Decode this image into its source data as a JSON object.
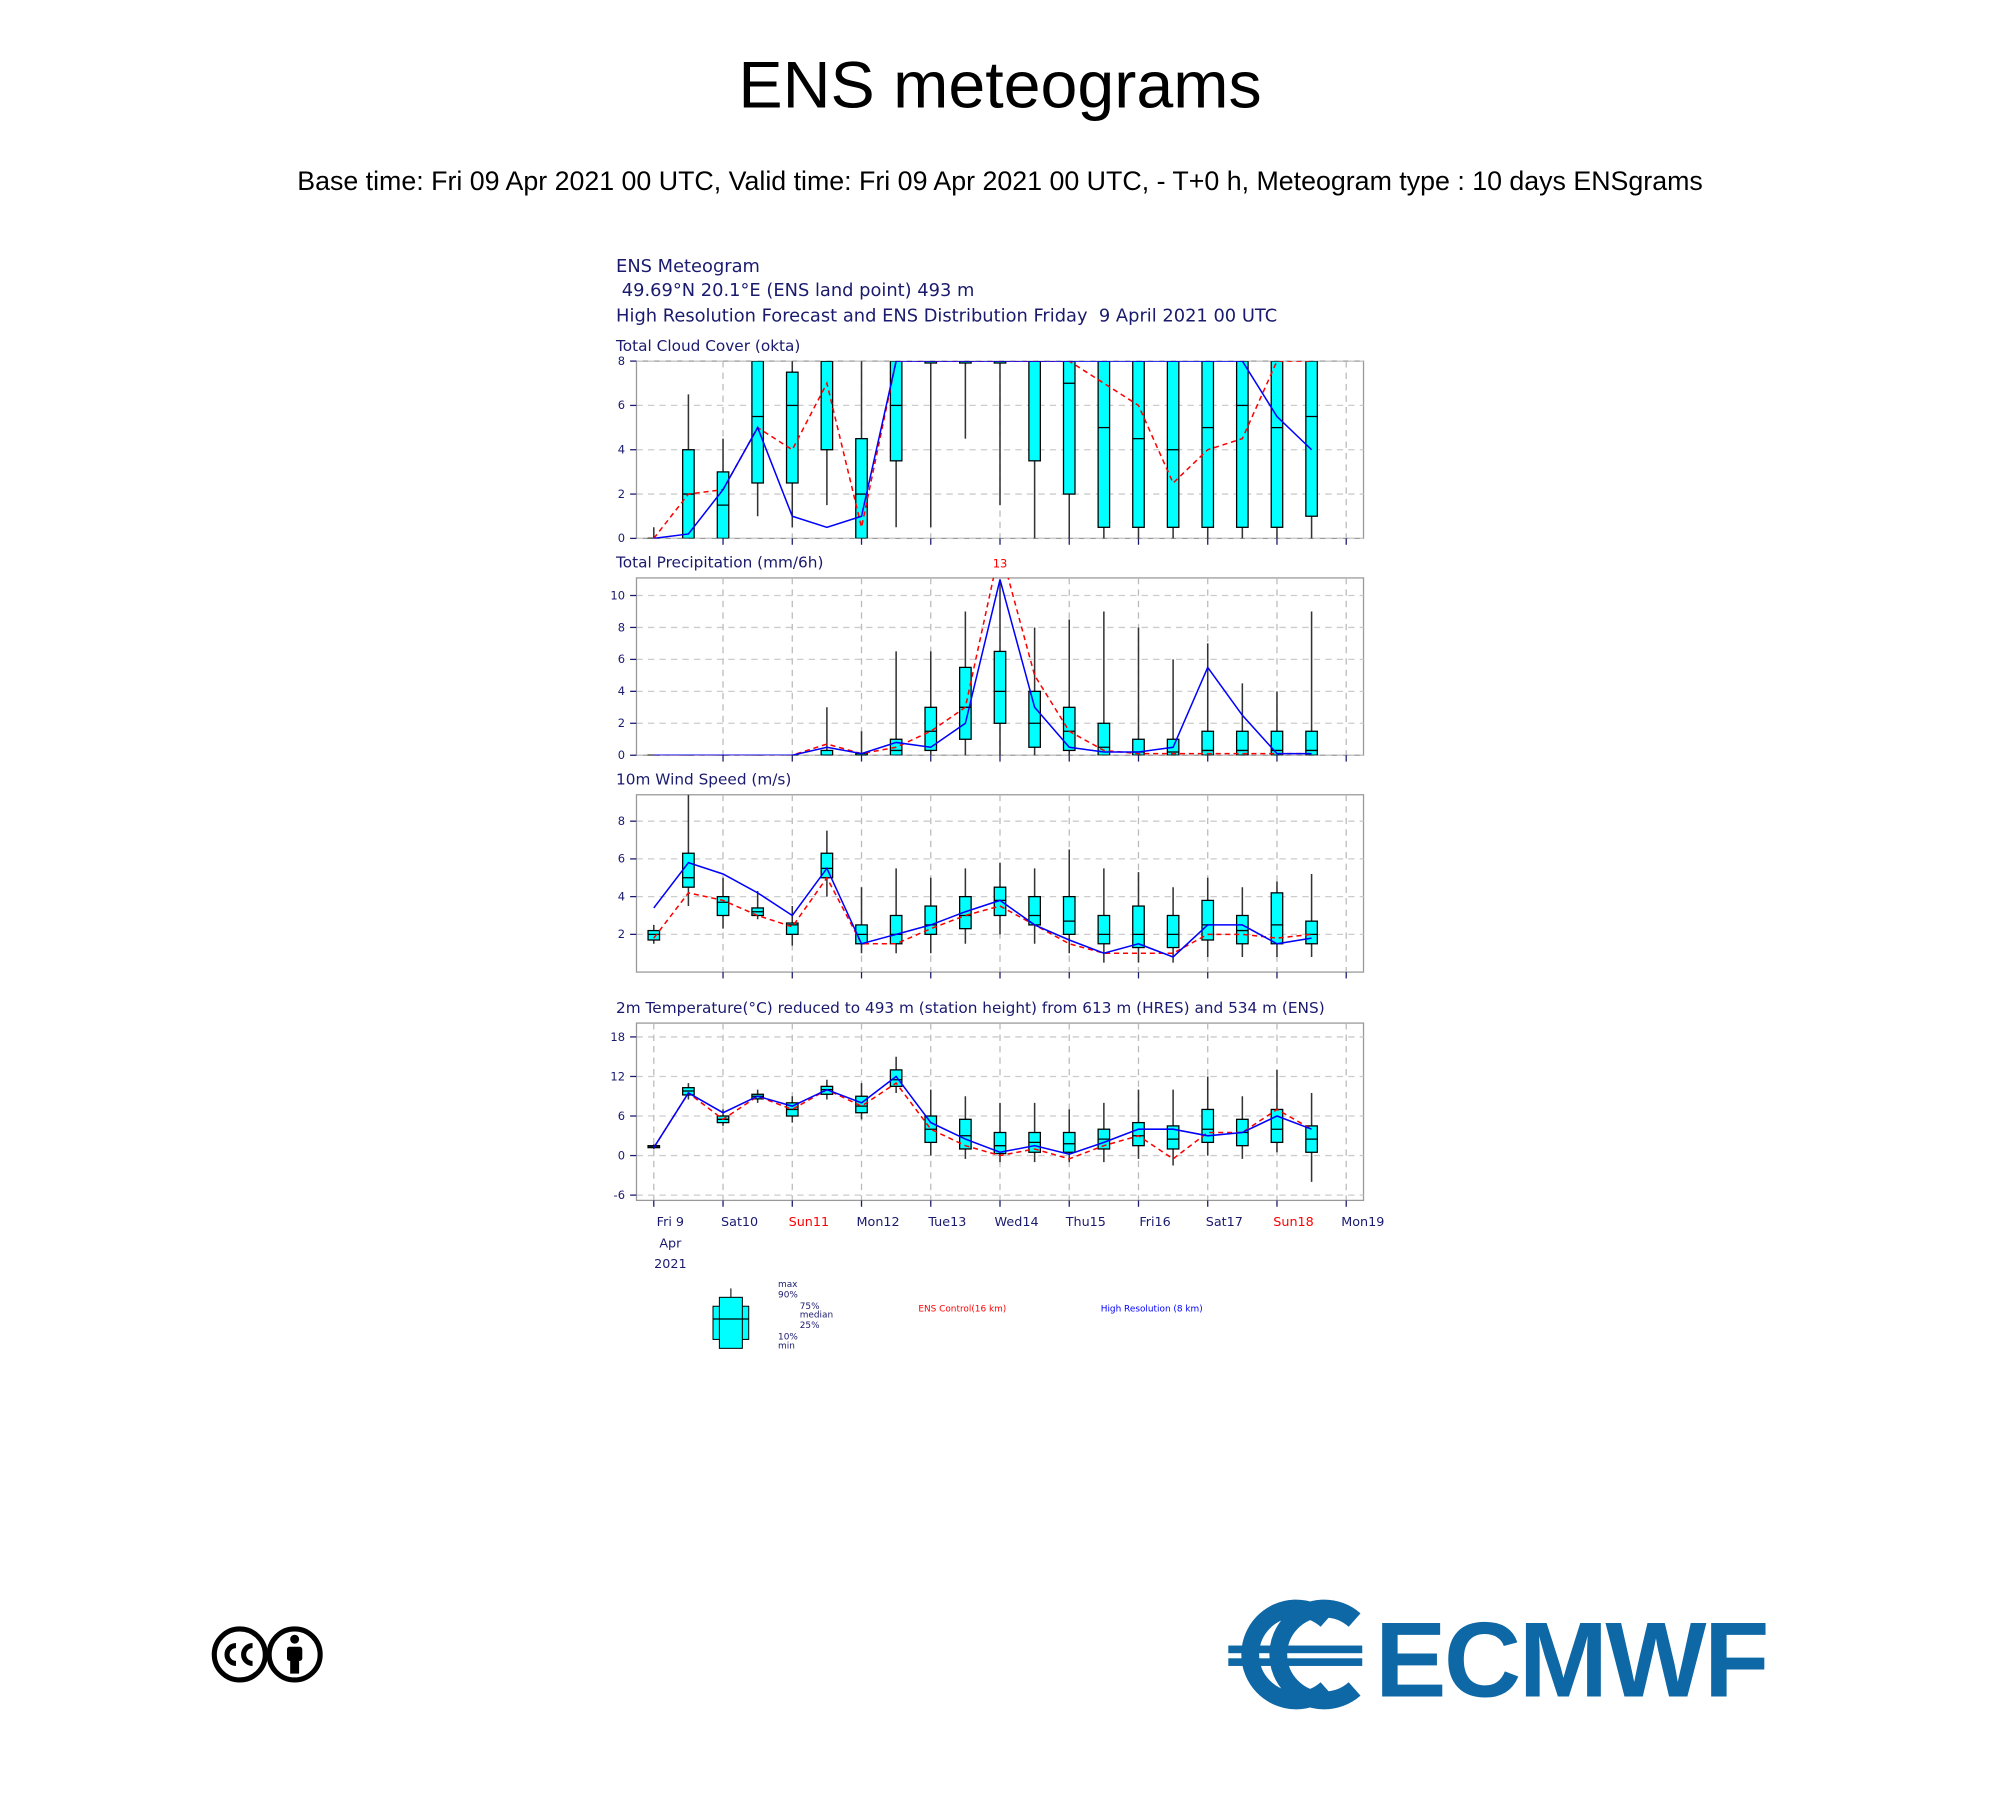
{
  "page": {
    "title": "ENS meteograms",
    "subtitle": "Base time: Fri 09 Apr 2021 00 UTC, Valid time: Fri 09 Apr 2021 00 UTC, - T+0 h, Meteogram type : 10 days ENSgrams",
    "header": [
      "ENS Meteogram",
      " 49.69°N 20.1°E (ENS land point) 493 m",
      "High Resolution Forecast and ENS Distribution Friday  9 April 2021 00 UTC"
    ],
    "legend": {
      "stats": [
        "max",
        "90%",
        "75%",
        "median",
        "25%",
        "10%",
        "min"
      ],
      "box_color": "#00ffff",
      "control": "ENS Control(16 km)",
      "control_color": "#ff0000",
      "hres": "High Resolution (8 km)",
      "hres_color": "#0000ff"
    },
    "logo_text": "ECMWF",
    "logo_color": "#0f68a6"
  },
  "chart_data": [
    {
      "type": "box",
      "title": "Total Cloud Cover (okta)",
      "grid": true,
      "x": [
        0,
        12,
        24,
        36,
        48,
        60,
        72,
        84,
        96,
        108,
        120,
        132,
        144,
        156,
        168,
        180,
        192,
        204,
        216,
        228
      ],
      "xlim": [
        -6,
        246
      ],
      "xticks": [
        24,
        48,
        72,
        96,
        120,
        144,
        168,
        192,
        216,
        240
      ],
      "ylim": [
        0,
        8
      ],
      "yticks": [
        0,
        2,
        4,
        6,
        8
      ],
      "boxes": {
        "color": "#00ffff",
        "min": [
          0,
          0,
          0,
          1,
          0.5,
          1.5,
          0,
          0.5,
          0.5,
          4.5,
          1.5,
          0,
          0,
          0,
          0,
          0,
          0,
          0,
          0,
          0
        ],
        "q1": [
          0,
          0,
          0,
          2.5,
          2.5,
          4,
          0,
          3.5,
          8,
          8,
          8,
          3.5,
          2,
          0.5,
          0.5,
          0.5,
          0.5,
          0.5,
          0.5,
          1
        ],
        "median": [
          0,
          2,
          1.5,
          5.5,
          6,
          8,
          2,
          6,
          8,
          8,
          8,
          8,
          7,
          5,
          4.5,
          4,
          5,
          6,
          5,
          5.5
        ],
        "q3": [
          0,
          4,
          3,
          8,
          7.5,
          8,
          4.5,
          8,
          8,
          8,
          8,
          8,
          8,
          8,
          8,
          8,
          8,
          8,
          8,
          8
        ],
        "max": [
          0.5,
          6.5,
          4.5,
          8,
          8,
          8,
          8,
          8,
          8,
          8,
          8,
          8,
          8,
          8,
          8,
          8,
          8,
          8,
          8,
          8
        ]
      },
      "series": [
        {
          "color": "#ff0000",
          "dashed": true,
          "values": [
            0,
            2,
            2.2,
            5,
            4,
            7,
            0.5,
            8,
            8,
            8,
            8,
            8,
            8,
            7,
            6,
            2.5,
            4,
            4.5,
            8,
            8
          ]
        },
        {
          "color": "#0000ff",
          "dashed": false,
          "values": [
            0,
            0.2,
            2.2,
            5,
            1,
            0.5,
            1,
            8,
            8,
            8,
            8,
            8,
            8,
            8,
            8,
            8,
            8,
            8,
            5.5,
            4
          ]
        }
      ]
    },
    {
      "type": "box",
      "title": "Total Precipitation (mm/6h)",
      "grid": true,
      "x": [
        0,
        12,
        24,
        36,
        48,
        60,
        72,
        84,
        96,
        108,
        120,
        132,
        144,
        156,
        168,
        180,
        192,
        204,
        216,
        228
      ],
      "xlim": [
        -6,
        246
      ],
      "xticks": [
        24,
        48,
        72,
        96,
        120,
        144,
        168,
        192,
        216,
        240
      ],
      "ylim": [
        0,
        11.1
      ],
      "yticks": [
        0,
        2,
        4,
        6,
        8,
        10
      ],
      "boxes": {
        "color": "#00ffff",
        "min": [
          0,
          0,
          0,
          0,
          0,
          0,
          0,
          0,
          0,
          0,
          0,
          0,
          0,
          0,
          0,
          0,
          0,
          0,
          0,
          0
        ],
        "q1": [
          0,
          0,
          0,
          0,
          0,
          0,
          0,
          0,
          0.3,
          1,
          2,
          0.5,
          0.3,
          0,
          0,
          0,
          0,
          0,
          0,
          0
        ],
        "median": [
          0,
          0,
          0,
          0,
          0,
          0,
          0,
          0.3,
          1.5,
          3,
          4,
          2,
          1.5,
          0.5,
          0.2,
          0.2,
          0.3,
          0.3,
          0.3,
          0.3
        ],
        "q3": [
          0,
          0,
          0,
          0,
          0,
          0.3,
          0.1,
          1,
          3,
          5.5,
          6.5,
          4,
          3,
          2,
          1,
          1,
          1.5,
          1.5,
          1.5,
          1.5
        ],
        "max": [
          0,
          0,
          0,
          0,
          0,
          3,
          1.5,
          6.5,
          6.5,
          9,
          11,
          8,
          8.5,
          9,
          8,
          6,
          7,
          4.5,
          4,
          9
        ]
      },
      "series": [
        {
          "color": "#ff0000",
          "dashed": true,
          "values": [
            0,
            0,
            0,
            0,
            0,
            0.7,
            0.1,
            0.5,
            1.5,
            3,
            13,
            5,
            1.5,
            0.3,
            0.1,
            0.1,
            0.1,
            0.1,
            0.1,
            0.1
          ],
          "value_labels": [
            null,
            null,
            null,
            null,
            null,
            null,
            null,
            null,
            null,
            null,
            "13",
            null,
            null,
            null,
            null,
            null,
            null,
            null,
            null,
            null
          ]
        },
        {
          "color": "#0000ff",
          "dashed": false,
          "values": [
            0,
            0,
            0,
            0,
            0,
            0.5,
            0.1,
            0.8,
            0.5,
            2,
            11,
            3,
            0.5,
            0.2,
            0.2,
            0.5,
            5.5,
            2.5,
            0.1,
            0.1
          ]
        }
      ]
    },
    {
      "type": "box",
      "title": "10m Wind Speed (m/s)",
      "grid": true,
      "x": [
        0,
        12,
        24,
        36,
        48,
        60,
        72,
        84,
        96,
        108,
        120,
        132,
        144,
        156,
        168,
        180,
        192,
        204,
        216,
        228
      ],
      "xlim": [
        -6,
        246
      ],
      "xticks": [
        24,
        48,
        72,
        96,
        120,
        144,
        168,
        192,
        216,
        240
      ],
      "ylim": [
        0,
        9.4
      ],
      "yticks": [
        2,
        4,
        6,
        8
      ],
      "boxes": {
        "color": "#00ffff",
        "min": [
          1.5,
          3.5,
          2.3,
          2.8,
          1.4,
          4,
          1,
          1,
          1,
          1.5,
          2,
          1.5,
          1,
          0.5,
          0.5,
          0.5,
          0.8,
          0.8,
          0.8,
          0.8
        ],
        "q1": [
          1.7,
          4.5,
          3,
          3,
          2,
          5,
          1.5,
          1.5,
          2,
          2.3,
          3,
          2.5,
          2,
          1.5,
          1.3,
          1.3,
          1.7,
          1.5,
          1.5,
          1.5
        ],
        "median": [
          2,
          5,
          3.7,
          3.2,
          2.5,
          5.5,
          2,
          2,
          2.5,
          3,
          3.8,
          3,
          2.7,
          2,
          2,
          2,
          2.5,
          2.2,
          2.5,
          2
        ],
        "q3": [
          2.2,
          6.3,
          4,
          3.4,
          2.6,
          6.3,
          2.5,
          3,
          3.5,
          4,
          4.5,
          4,
          4,
          3,
          3.5,
          3,
          3.8,
          3,
          4.2,
          2.7
        ],
        "max": [
          2.5,
          9.4,
          5,
          4.3,
          3.5,
          7.5,
          4.5,
          5.5,
          5,
          5.5,
          5.8,
          5.5,
          6.5,
          5.5,
          5.3,
          4.5,
          5,
          4.5,
          4.8,
          5.2
        ]
      },
      "series": [
        {
          "color": "#ff0000",
          "dashed": true,
          "values": [
            1.8,
            4.2,
            3.8,
            3,
            2.4,
            5,
            1.5,
            1.5,
            2.3,
            3,
            3.5,
            2.5,
            1.5,
            1,
            1,
            1,
            2,
            2,
            1.8,
            2
          ]
        },
        {
          "color": "#0000ff",
          "dashed": false,
          "values": [
            3.4,
            5.8,
            5.2,
            4.2,
            3,
            5.5,
            1.5,
            2,
            2.5,
            3.2,
            3.8,
            2.5,
            1.7,
            1,
            1.5,
            0.8,
            2.5,
            2.5,
            1.5,
            1.8
          ]
        }
      ]
    },
    {
      "type": "box",
      "title": "2m Temperature(°C) reduced to 493 m (station height) from 613 m (HRES) and 534 m (ENS)",
      "grid": true,
      "x": [
        0,
        12,
        24,
        36,
        48,
        60,
        72,
        84,
        96,
        108,
        120,
        132,
        144,
        156,
        168,
        180,
        192,
        204,
        216,
        228
      ],
      "xlim": [
        -6,
        246
      ],
      "xticks": [
        {
          "value": 0,
          "label": "Fri 9"
        },
        {
          "value": 24,
          "label": "Sat10"
        },
        {
          "value": 48,
          "label": "Sun11"
        },
        {
          "value": 72,
          "label": "Mon12"
        },
        {
          "value": 96,
          "label": "Tue13"
        },
        {
          "value": 120,
          "label": "Wed14"
        },
        {
          "value": 144,
          "label": "Thu15"
        },
        {
          "value": 168,
          "label": "Fri16"
        },
        {
          "value": 192,
          "label": "Sat17"
        },
        {
          "value": 216,
          "label": "Sun18"
        },
        {
          "value": 240,
          "label": "Mon19"
        }
      ],
      "xtick_colors": [
        "#1a1a6e",
        "#1a1a6e",
        "#ff0000",
        "#1a1a6e",
        "#1a1a6e",
        "#1a1a6e",
        "#1a1a6e",
        "#1a1a6e",
        "#1a1a6e",
        "#ff0000",
        "#1a1a6e"
      ],
      "date_lines": [
        "Apr",
        "2021"
      ],
      "ylim": [
        -6.8,
        20.1
      ],
      "yticks": [
        -6,
        0,
        6,
        12,
        18
      ],
      "boxes": {
        "color": "#00ffff",
        "min": [
          1,
          8.5,
          4.5,
          8,
          5,
          8.5,
          5.5,
          9.5,
          0,
          -0.5,
          -1,
          -1,
          -1,
          -1,
          -0.5,
          -1.5,
          0,
          -0.5,
          0.5,
          -4
        ],
        "q1": [
          1.2,
          9.2,
          5,
          8.6,
          6,
          9.3,
          6.5,
          10.5,
          2,
          1,
          0.3,
          0.5,
          0.5,
          1,
          1.5,
          1,
          2,
          1.5,
          2,
          0.5
        ],
        "median": [
          1.3,
          9.8,
          5.5,
          9,
          7,
          10,
          7.5,
          11.5,
          4,
          3,
          1.5,
          2,
          1.8,
          2.5,
          3,
          2.5,
          4,
          3.5,
          4,
          2.5
        ],
        "q3": [
          1.5,
          10.3,
          6,
          9.3,
          8,
          10.5,
          9,
          13,
          6,
          5.5,
          3.5,
          3.5,
          3.5,
          4,
          5,
          4.5,
          7,
          5.5,
          7,
          4.5
        ],
        "max": [
          1.7,
          11,
          7,
          10,
          9,
          11.5,
          11,
          15,
          10,
          9,
          8,
          8,
          7,
          8,
          10,
          10,
          12,
          9,
          13,
          9.5
        ]
      },
      "series": [
        {
          "color": "#ff0000",
          "dashed": true,
          "values": [
            1.2,
            9.5,
            5.5,
            9,
            7,
            10,
            7.5,
            11,
            4,
            1.5,
            0,
            1,
            -0.5,
            1.5,
            3,
            -0.5,
            3.5,
            3.5,
            7,
            4
          ]
        },
        {
          "color": "#0000ff",
          "dashed": false,
          "values": [
            1.2,
            9.5,
            6.5,
            9,
            7.5,
            10,
            8,
            12,
            5,
            2.5,
            0.5,
            1.5,
            0.2,
            2,
            4,
            4,
            3,
            3.5,
            6,
            4
          ]
        }
      ]
    }
  ]
}
